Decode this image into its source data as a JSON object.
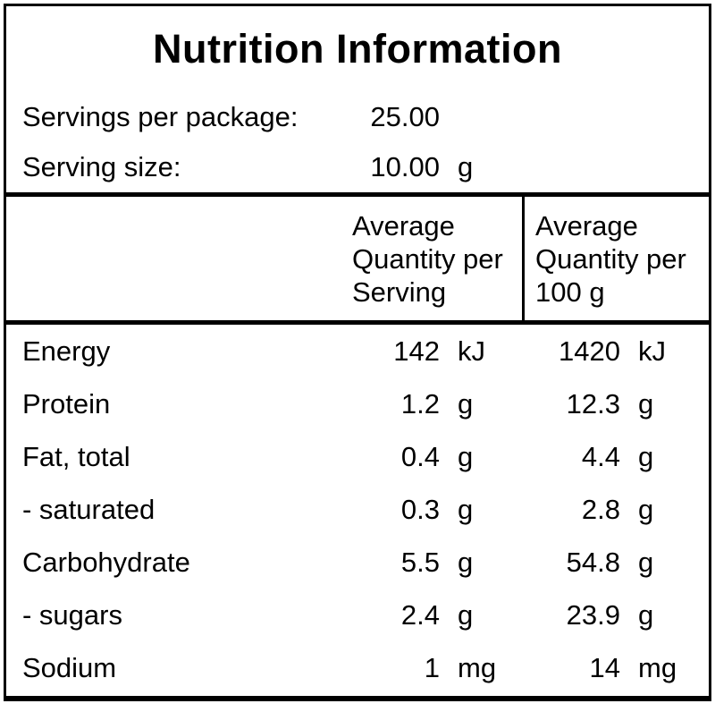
{
  "label": {
    "title": "Nutrition Information",
    "servings_per_package": {
      "label": "Servings per package:",
      "value": "25.00"
    },
    "serving_size": {
      "label": "Serving size:",
      "value": "10.00",
      "unit": "g"
    },
    "columns": {
      "per_serving_header": "Average Quantity per Serving",
      "per_100g_header": "Average Quantity per 100 g"
    },
    "rows": [
      {
        "name": "Energy",
        "per_serving": "142",
        "per_serving_unit": "kJ",
        "per_100g": "1420",
        "per_100g_unit": "kJ"
      },
      {
        "name": "Protein",
        "per_serving": "1.2",
        "per_serving_unit": "g",
        "per_100g": "12.3",
        "per_100g_unit": "g"
      },
      {
        "name": "Fat, total",
        "per_serving": "0.4",
        "per_serving_unit": "g",
        "per_100g": "4.4",
        "per_100g_unit": "g"
      },
      {
        "name": "- saturated",
        "per_serving": "0.3",
        "per_serving_unit": "g",
        "per_100g": "2.8",
        "per_100g_unit": "g"
      },
      {
        "name": "Carbohydrate",
        "per_serving": "5.5",
        "per_serving_unit": "g",
        "per_100g": "54.8",
        "per_100g_unit": "g"
      },
      {
        "name": "- sugars",
        "per_serving": "2.4",
        "per_serving_unit": "g",
        "per_100g": "23.9",
        "per_100g_unit": "g"
      },
      {
        "name": "Sodium",
        "per_serving": "1",
        "per_serving_unit": "mg",
        "per_100g": "14",
        "per_100g_unit": "mg"
      }
    ],
    "colors": {
      "border": "#000000",
      "background": "#ffffff",
      "text": "#000000"
    }
  }
}
